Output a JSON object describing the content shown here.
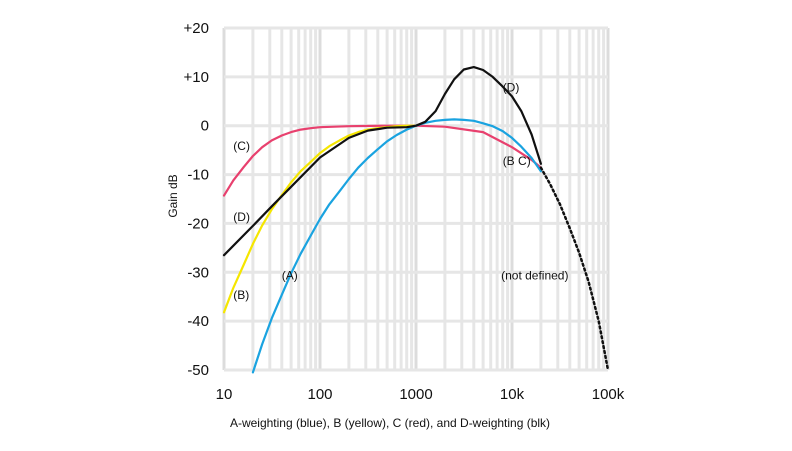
{
  "chart_data": {
    "type": "line",
    "caption": "A-weighting (blue), B (yellow), C (red), and D-weighting (blk)",
    "ylabel": "Gain dB",
    "xlabel": "",
    "x_scale": "log",
    "xlim": [
      10,
      100000
    ],
    "ylim": [
      -50,
      20
    ],
    "grid": true,
    "x_ticks": [
      {
        "value": 10,
        "label": "10"
      },
      {
        "value": 100,
        "label": "100"
      },
      {
        "value": 1000,
        "label": "1000"
      },
      {
        "value": 10000,
        "label": "10k"
      },
      {
        "value": 100000,
        "label": "100k"
      }
    ],
    "y_ticks": [
      {
        "value": 20,
        "label": "+20"
      },
      {
        "value": 10,
        "label": "+10"
      },
      {
        "value": 0,
        "label": "0"
      },
      {
        "value": -10,
        "label": "-10"
      },
      {
        "value": -20,
        "label": "-20"
      },
      {
        "value": -30,
        "label": "-30"
      },
      {
        "value": -40,
        "label": "-40"
      },
      {
        "value": -50,
        "label": "-50"
      }
    ],
    "series": [
      {
        "key": "C",
        "color": "#e8406e",
        "dashed": false,
        "x": [
          10,
          12.5,
          16,
          20,
          25,
          31.5,
          40,
          50,
          63,
          80,
          100,
          200,
          500,
          1000,
          2000,
          5000,
          10000,
          16000,
          20000
        ],
        "y": [
          -14.3,
          -11.2,
          -8.5,
          -6.2,
          -4.4,
          -3.0,
          -2.0,
          -1.3,
          -0.8,
          -0.5,
          -0.3,
          -0.1,
          0,
          0,
          -0.2,
          -1.3,
          -4.4,
          -7.0,
          -8.6
        ]
      },
      {
        "key": "B",
        "color": "#f5e600",
        "dashed": false,
        "x": [
          10,
          12.5,
          16,
          20,
          25,
          31.5,
          40,
          50,
          63,
          80,
          100,
          125,
          160,
          200,
          250,
          315,
          400,
          500,
          630,
          800,
          1000
        ],
        "y": [
          -38.2,
          -33.2,
          -28.5,
          -24.2,
          -20.4,
          -17.1,
          -14.2,
          -11.6,
          -9.3,
          -7.4,
          -5.6,
          -4.2,
          -3.0,
          -2.0,
          -1.3,
          -0.8,
          -0.5,
          -0.3,
          -0.1,
          0,
          0
        ]
      },
      {
        "key": "A",
        "color": "#1aa3e0",
        "dashed": false,
        "x": [
          20,
          25,
          31.5,
          40,
          50,
          63,
          80,
          100,
          125,
          160,
          200,
          250,
          315,
          400,
          500,
          630,
          800,
          1000,
          1250,
          1600,
          2000,
          2500,
          3150,
          4000,
          5000,
          6300,
          8000,
          10000,
          12500,
          16000,
          20000
        ],
        "y": [
          -50.5,
          -44.7,
          -39.4,
          -34.6,
          -30.2,
          -26.2,
          -22.5,
          -19.1,
          -16.1,
          -13.4,
          -10.9,
          -8.6,
          -6.6,
          -4.8,
          -3.2,
          -1.9,
          -0.8,
          0,
          0.6,
          1.0,
          1.2,
          1.3,
          1.2,
          1.0,
          0.5,
          -0.1,
          -1.1,
          -2.5,
          -4.3,
          -6.6,
          -9.3
        ]
      },
      {
        "key": "D",
        "color": "#111111",
        "dashed": false,
        "x": [
          10,
          20,
          31.5,
          50,
          100,
          200,
          315,
          500,
          800,
          1000,
          1250,
          1600,
          2000,
          2500,
          3150,
          4000,
          5000,
          6300,
          8000,
          10000,
          12500,
          16000,
          20000
        ],
        "y": [
          -26.5,
          -20.5,
          -16.5,
          -12.5,
          -6.5,
          -2.5,
          -1.0,
          -0.4,
          -0.3,
          0,
          0.8,
          3.0,
          6.5,
          9.5,
          11.5,
          12.0,
          11.4,
          10.0,
          8.0,
          6.0,
          3.0,
          -1.8,
          -7.8
        ]
      },
      {
        "key": "D-extension",
        "color": "#111111",
        "dashed": true,
        "x": [
          20000,
          25000,
          31500,
          40000,
          50000,
          63000,
          80000,
          100000
        ],
        "y": [
          -8.6,
          -12.0,
          -16.0,
          -21.0,
          -26.0,
          -32.0,
          -40.0,
          -50.0
        ]
      }
    ],
    "annotations": [
      {
        "text": "(C)",
        "x": 12.5,
        "y": -5
      },
      {
        "text": "(D)",
        "x": 12.5,
        "y": -19.5
      },
      {
        "text": "(B)",
        "x": 12.5,
        "y": -35.5
      },
      {
        "text": "(A)",
        "x": 40,
        "y": -31.5
      },
      {
        "text": "(D)",
        "x": 8000,
        "y": 7
      },
      {
        "text": "(B C)",
        "x": 8000,
        "y": -8
      },
      {
        "text": "(not defined)",
        "x": 7700,
        "y": -31.5
      }
    ]
  }
}
